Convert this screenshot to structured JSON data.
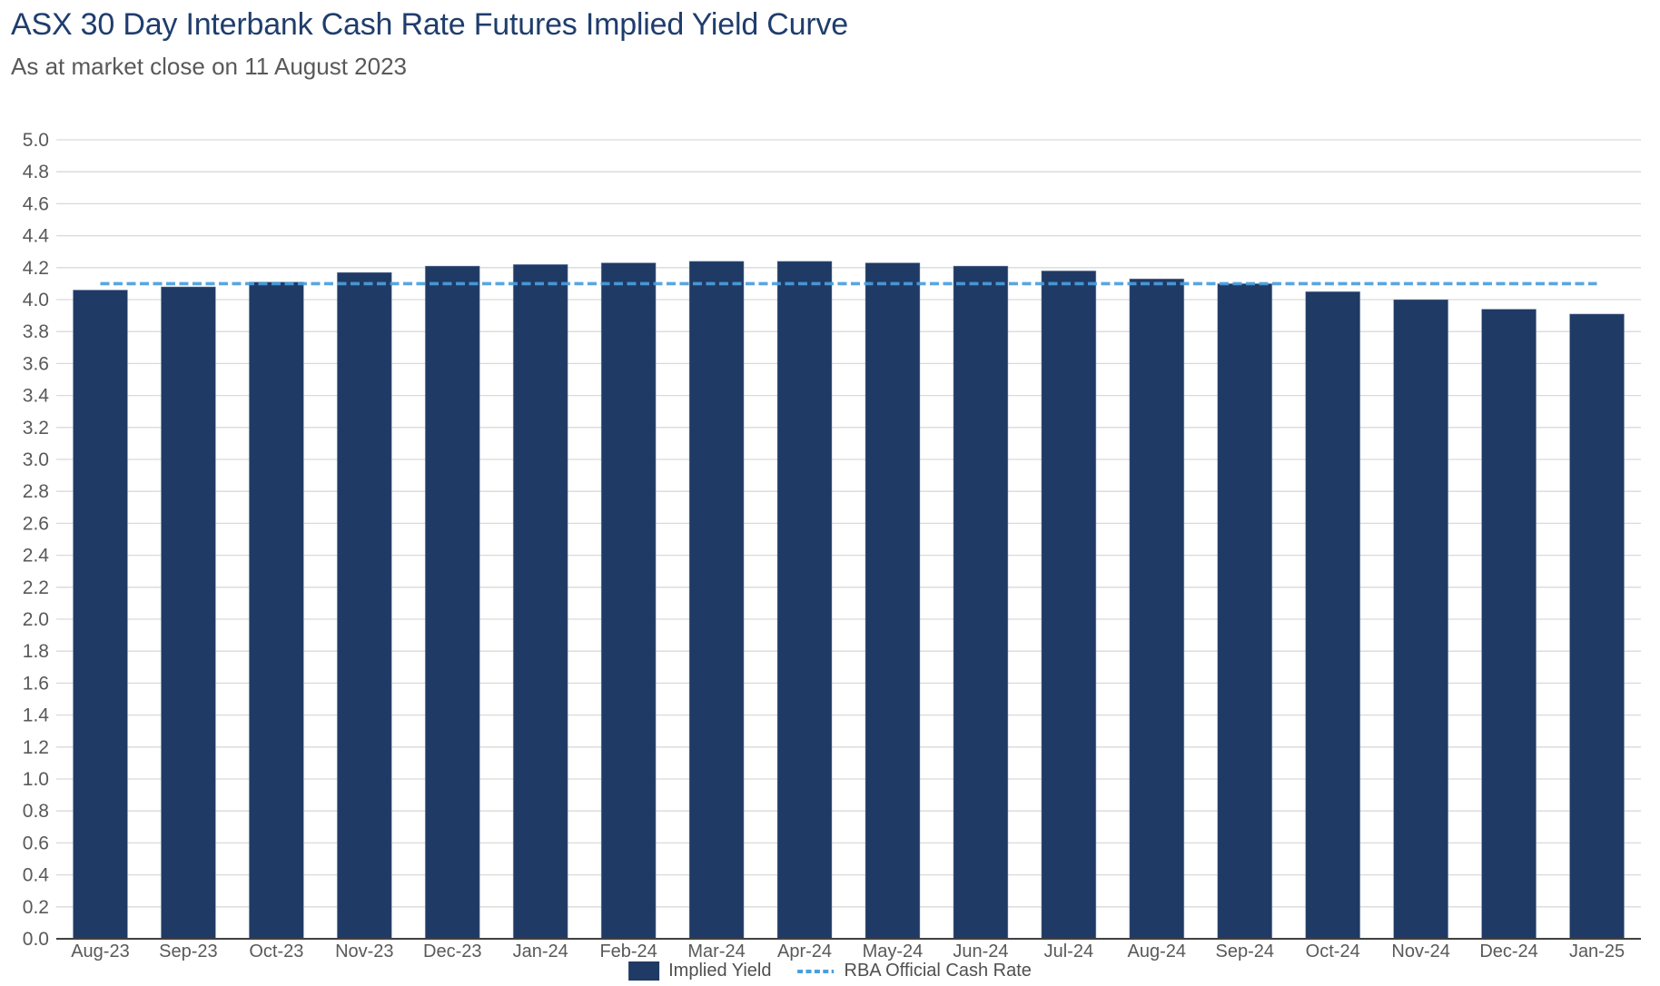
{
  "header": {
    "title": "ASX 30 Day Interbank Cash Rate Futures Implied Yield Curve",
    "subtitle": "As at market close on 11 August 2023"
  },
  "colors": {
    "title": "#1f3d6d",
    "subtitle": "#595959",
    "axis_text": "#595959",
    "gridline": "#d9d9d9",
    "axis_line": "#404040",
    "bar": "#1f3a64",
    "bar_border": "#8aa2c0",
    "rba_line": "#4a9edd"
  },
  "chart_data": {
    "type": "bar",
    "title": "ASX 30 Day Interbank Cash Rate Futures Implied Yield Curve",
    "subtitle": "As at market close on 11 August 2023",
    "categories": [
      "Aug-23",
      "Sep-23",
      "Oct-23",
      "Nov-23",
      "Dec-23",
      "Jan-24",
      "Feb-24",
      "Mar-24",
      "Apr-24",
      "May-24",
      "Jun-24",
      "Jul-24",
      "Aug-24",
      "Sep-24",
      "Oct-24",
      "Nov-24",
      "Dec-24",
      "Jan-25"
    ],
    "series": [
      {
        "name": "Implied Yield",
        "type": "bar",
        "values": [
          4.06,
          4.08,
          4.11,
          4.17,
          4.21,
          4.22,
          4.23,
          4.24,
          4.24,
          4.23,
          4.21,
          4.18,
          4.13,
          4.1,
          4.05,
          4.0,
          3.94,
          3.91
        ]
      },
      {
        "name": "RBA Official Cash Rate",
        "type": "line",
        "style": "dashed",
        "value": 4.1
      }
    ],
    "xlabel": "",
    "ylabel": "",
    "ylim": [
      0.0,
      5.0
    ],
    "ytick_step": 0.2,
    "grid": true,
    "legend_position": "bottom"
  }
}
